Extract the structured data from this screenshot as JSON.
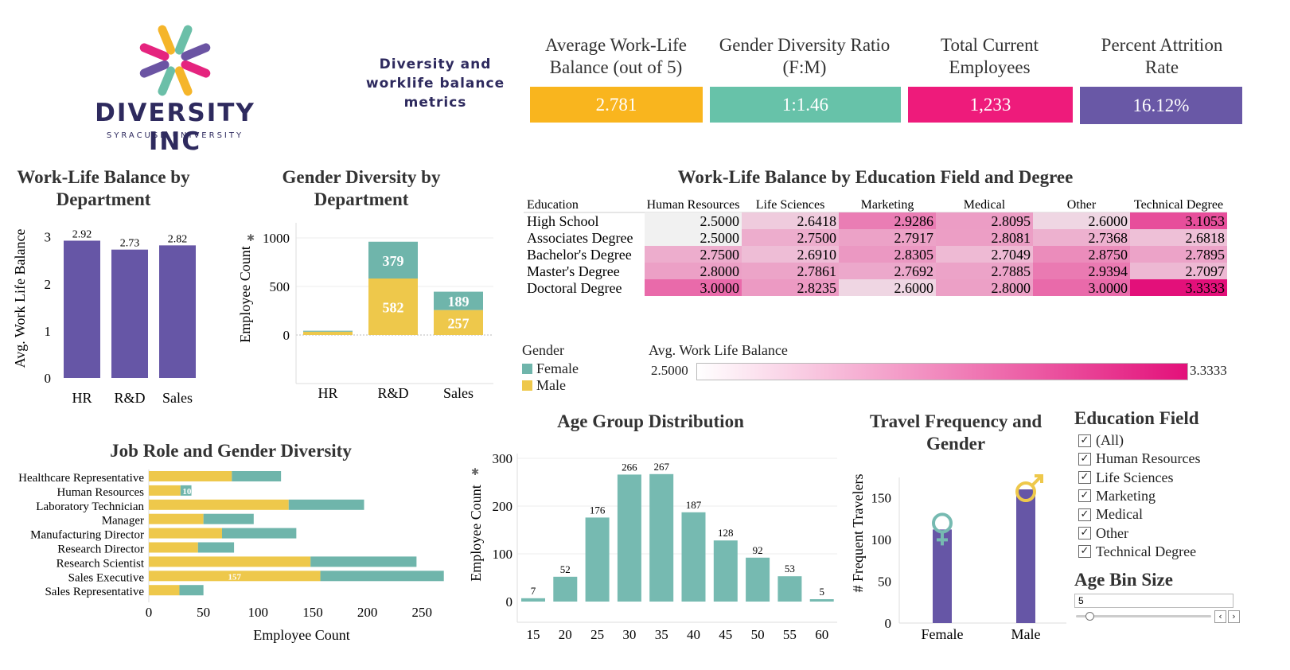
{
  "brand": {
    "name": "DIVERSITY INC",
    "sub": "SYRACUSE UNIVERSITY",
    "tagline": [
      "Diversity and",
      "worklife balance",
      "metrics"
    ],
    "logo_colors": [
      "#E5247E",
      "#F5B52A",
      "#6BBFA8",
      "#6B54A3"
    ]
  },
  "kpis": [
    {
      "title": "Average Work-Life Balance (out of 5)",
      "value": "2.781",
      "color": "#F9B51E"
    },
    {
      "title": "Gender Diversity Ratio (F:M)",
      "value": "1:1.46",
      "color": "#67C2A9"
    },
    {
      "title": "Total Current Employees",
      "value": "1,233",
      "color": "#EE1B7B"
    },
    {
      "title": "Percent Attrition Rate",
      "value": "16.12%",
      "color": "#6958A6"
    }
  ],
  "colors": {
    "female": "#6FB5AB",
    "male": "#EEC84B",
    "purple": "#6656A6",
    "teal": "#76BAB1",
    "pink": "#E3107A"
  },
  "chart_data": [
    {
      "id": "wlb_dept",
      "type": "bar",
      "title": "Work-Life Balance by Department",
      "ylabel": "Avg. Work Life Balance",
      "categories": [
        "HR",
        "R&D",
        "Sales"
      ],
      "values": [
        2.92,
        2.73,
        2.82
      ],
      "value_labels": [
        "2.92",
        "2.73",
        "2.82"
      ],
      "ylim": [
        0,
        3.3
      ],
      "yticks": [
        "0",
        "1",
        "2",
        "3"
      ]
    },
    {
      "id": "gender_dept",
      "type": "bar",
      "stacked": true,
      "title": "Gender Diversity by Department",
      "ylabel": "Employee Count",
      "categories": [
        "HR",
        "R&D",
        "Sales"
      ],
      "series": [
        {
          "name": "Male",
          "values": [
            34,
            582,
            257
          ],
          "labels": [
            "",
            "582",
            "257"
          ]
        },
        {
          "name": "Female",
          "values": [
            10,
            379,
            189
          ],
          "labels": [
            "",
            "379",
            "189"
          ]
        }
      ],
      "ylim": [
        0,
        1050
      ],
      "yticks": [
        "0",
        "500",
        "1000"
      ]
    },
    {
      "id": "wlb_edu",
      "type": "heatmap",
      "title": "Work-Life Balance by Education Field and Degree",
      "row_header": "Education",
      "columns": [
        "Human Resources",
        "Life Sciences",
        "Marketing",
        "Medical",
        "Other",
        "Technical Degree"
      ],
      "rows": [
        "High School",
        "Associates Degree",
        "Bachelor's Degree",
        "Master's Degree",
        "Doctoral Degree"
      ],
      "values": [
        [
          2.5,
          2.6418,
          2.9286,
          2.8095,
          2.6,
          3.1053
        ],
        [
          2.5,
          2.75,
          2.7917,
          2.8081,
          2.7368,
          2.6818
        ],
        [
          2.75,
          2.691,
          2.8305,
          2.7049,
          2.875,
          2.7895
        ],
        [
          2.8,
          2.7861,
          2.7692,
          2.7885,
          2.9394,
          2.7097
        ],
        [
          3.0,
          2.8235,
          2.6,
          2.8,
          3.0,
          3.3333
        ]
      ],
      "labels": [
        [
          "2.5000",
          "2.6418",
          "2.9286",
          "2.8095",
          "2.6000",
          "3.1053"
        ],
        [
          "2.5000",
          "2.7500",
          "2.7917",
          "2.8081",
          "2.7368",
          "2.6818"
        ],
        [
          "2.7500",
          "2.6910",
          "2.8305",
          "2.7049",
          "2.8750",
          "2.7895"
        ],
        [
          "2.8000",
          "2.7861",
          "2.7692",
          "2.7885",
          "2.9394",
          "2.7097"
        ],
        [
          "3.0000",
          "2.8235",
          "2.6000",
          "2.8000",
          "3.0000",
          "3.3333"
        ]
      ],
      "scale_min": 2.5,
      "scale_max": 3.3333
    },
    {
      "id": "job_role",
      "type": "bar",
      "orientation": "horizontal",
      "stacked": true,
      "title": "Job Role and Gender Diversity",
      "xlabel": "Employee Count",
      "categories": [
        "Healthcare Representative",
        "Human Resources",
        "Laboratory Technician",
        "Manager",
        "Manufacturing Director",
        "Research Director",
        "Research Scientist",
        "Sales Executive",
        "Sales Representative"
      ],
      "series": [
        {
          "name": "Male",
          "values": [
            76,
            29,
            128,
            50,
            67,
            45,
            148,
            157,
            28
          ],
          "labels": [
            "",
            "",
            "",
            "",
            "",
            "",
            "",
            "157",
            ""
          ]
        },
        {
          "name": "Female",
          "values": [
            45,
            10,
            69,
            46,
            68,
            33,
            97,
            113,
            22
          ],
          "labels": [
            "",
            "10",
            "",
            "",
            "",
            "",
            "",
            "",
            ""
          ]
        }
      ],
      "xlim": [
        0,
        280
      ],
      "xticks": [
        "0",
        "50",
        "100",
        "150",
        "200",
        "250"
      ]
    },
    {
      "id": "age_group",
      "type": "bar",
      "title": "Age Group Distribution",
      "ylabel": "Employee Count",
      "categories": [
        "15",
        "20",
        "25",
        "30",
        "35",
        "40",
        "45",
        "50",
        "55",
        "60"
      ],
      "values": [
        7,
        52,
        176,
        266,
        267,
        187,
        128,
        92,
        53,
        5
      ],
      "ylim": [
        0,
        310
      ],
      "yticks": [
        "0",
        "100",
        "200",
        "300"
      ]
    },
    {
      "id": "travel_gender",
      "type": "bar",
      "title": "Travel Frequency and Gender",
      "ylabel": "# Frequent Travelers",
      "categories": [
        "Female",
        "Male"
      ],
      "values": [
        112,
        160
      ],
      "ylim": [
        0,
        172
      ],
      "yticks": [
        "0",
        "50",
        "100",
        "150"
      ]
    }
  ],
  "legends": {
    "gender_title": "Gender",
    "gender_items": [
      "Female",
      "Male"
    ],
    "wlb_title": "Avg. Work Life Balance",
    "wlb_min": "2.5000",
    "wlb_max": "3.3333"
  },
  "filters": {
    "education_title": "Education Field",
    "education_items": [
      "(All)",
      "Human Resources",
      "Life Sciences",
      "Marketing",
      "Medical",
      "Other",
      "Technical Degree"
    ],
    "age_bin_title": "Age Bin Size",
    "age_bin_value": "5"
  }
}
